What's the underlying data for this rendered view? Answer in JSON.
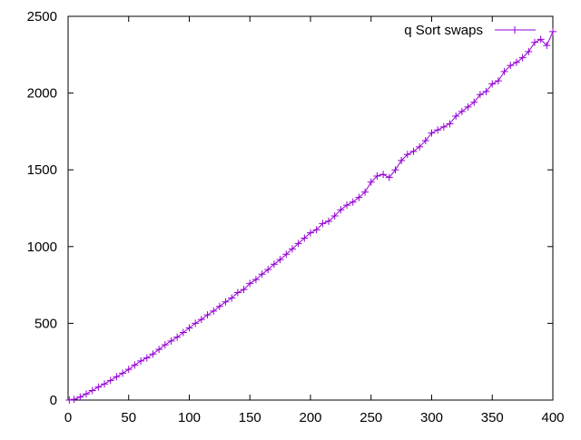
{
  "chart_data": {
    "type": "line",
    "title": "",
    "xlabel": "",
    "ylabel": "",
    "xlim": [
      0,
      400
    ],
    "ylim": [
      0,
      2500
    ],
    "xticks": [
      0,
      50,
      100,
      150,
      200,
      250,
      300,
      350,
      400
    ],
    "yticks": [
      0,
      500,
      1000,
      1500,
      2000,
      2500
    ],
    "grid": false,
    "legend_position": "top-right",
    "marker": "plus",
    "series": [
      {
        "name": "q Sort swaps",
        "color": "#9400d3",
        "x": [
          1,
          5,
          10,
          15,
          20,
          25,
          30,
          35,
          40,
          45,
          50,
          55,
          60,
          65,
          70,
          75,
          80,
          85,
          90,
          95,
          100,
          105,
          110,
          115,
          120,
          125,
          130,
          135,
          140,
          145,
          150,
          155,
          160,
          165,
          170,
          175,
          180,
          185,
          190,
          195,
          200,
          205,
          210,
          215,
          220,
          225,
          230,
          235,
          240,
          245,
          250,
          255,
          260,
          265,
          270,
          275,
          280,
          285,
          290,
          295,
          300,
          305,
          310,
          315,
          320,
          325,
          330,
          335,
          340,
          345,
          350,
          355,
          360,
          365,
          370,
          375,
          380,
          385,
          390,
          395,
          400
        ],
        "y": [
          0,
          5,
          20,
          40,
          62,
          85,
          105,
          128,
          152,
          175,
          200,
          228,
          255,
          275,
          300,
          330,
          360,
          385,
          410,
          440,
          470,
          500,
          525,
          555,
          580,
          610,
          640,
          665,
          700,
          720,
          760,
          785,
          820,
          850,
          885,
          915,
          950,
          985,
          1020,
          1055,
          1090,
          1110,
          1150,
          1165,
          1200,
          1240,
          1270,
          1290,
          1320,
          1355,
          1420,
          1460,
          1470,
          1450,
          1500,
          1560,
          1600,
          1620,
          1650,
          1690,
          1740,
          1760,
          1780,
          1800,
          1850,
          1880,
          1910,
          1940,
          1990,
          2010,
          2060,
          2080,
          2140,
          2180,
          2200,
          2230,
          2270,
          2330,
          2350,
          2310,
          2400
        ]
      }
    ]
  }
}
